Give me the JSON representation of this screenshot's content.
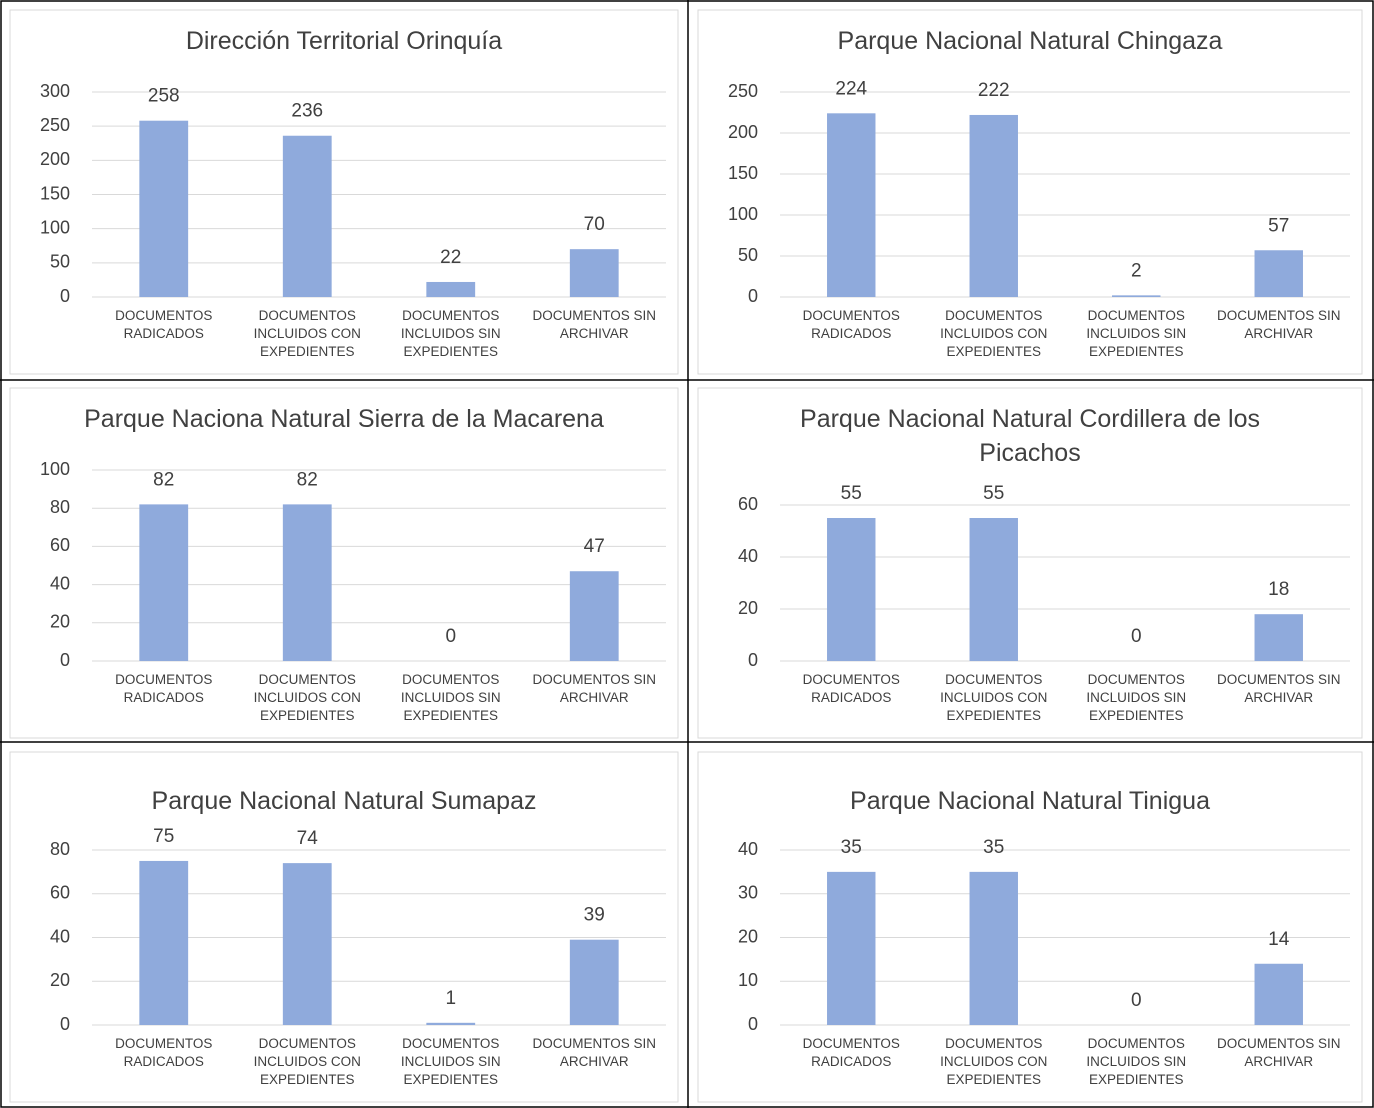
{
  "chart_data": [
    {
      "type": "bar",
      "title": "Dirección Territorial Orinquía",
      "categories": [
        "DOCUMENTOS RADICADOS",
        "DOCUMENTOS INCLUIDOS CON EXPEDIENTES",
        "DOCUMENTOS INCLUIDOS SIN EXPEDIENTES",
        "DOCUMENTOS SIN ARCHIVAR"
      ],
      "values": [
        258,
        236,
        22,
        70
      ],
      "color": "#8faadc",
      "ylim": [
        0,
        300
      ],
      "yticks": [
        0,
        50,
        100,
        150,
        200,
        250,
        300
      ],
      "grid": true
    },
    {
      "type": "bar",
      "title": "Parque Nacional Natural Chingaza",
      "categories": [
        "DOCUMENTOS RADICADOS",
        "DOCUMENTOS INCLUIDOS CON EXPEDIENTES",
        "DOCUMENTOS INCLUIDOS SIN EXPEDIENTES",
        "DOCUMENTOS SIN ARCHIVAR"
      ],
      "values": [
        224,
        222,
        2,
        57
      ],
      "color": "#8faadc",
      "ylim": [
        0,
        250
      ],
      "yticks": [
        0,
        50,
        100,
        150,
        200,
        250
      ],
      "grid": true
    },
    {
      "type": "bar",
      "title": "Parque Naciona Natural Sierra de la Macarena",
      "categories": [
        "DOCUMENTOS RADICADOS",
        "DOCUMENTOS INCLUIDOS CON EXPEDIENTES",
        "DOCUMENTOS INCLUIDOS SIN EXPEDIENTES",
        "DOCUMENTOS SIN ARCHIVAR"
      ],
      "values": [
        82,
        82,
        0,
        47
      ],
      "color": "#8faadc",
      "ylim": [
        0,
        100
      ],
      "yticks": [
        0,
        20,
        40,
        60,
        80,
        100
      ],
      "grid": true
    },
    {
      "type": "bar",
      "title": "Parque Nacional Natural Cordillera de los Picachos",
      "categories": [
        "DOCUMENTOS RADICADOS",
        "DOCUMENTOS INCLUIDOS CON EXPEDIENTES",
        "DOCUMENTOS INCLUIDOS SIN EXPEDIENTES",
        "DOCUMENTOS SIN ARCHIVAR"
      ],
      "values": [
        55,
        55,
        0,
        18
      ],
      "color": "#8faadc",
      "ylim": [
        0,
        60
      ],
      "yticks": [
        0,
        20,
        40,
        60
      ],
      "grid": true
    },
    {
      "type": "bar",
      "title": "Parque Nacional Natural Sumapaz",
      "categories": [
        "DOCUMENTOS RADICADOS",
        "DOCUMENTOS INCLUIDOS CON EXPEDIENTES",
        "DOCUMENTOS INCLUIDOS SIN EXPEDIENTES",
        "DOCUMENTOS SIN ARCHIVAR"
      ],
      "values": [
        75,
        74,
        1,
        39
      ],
      "color": "#8faadc",
      "ylim": [
        0,
        80
      ],
      "yticks": [
        0,
        20,
        40,
        60,
        80
      ],
      "grid": true
    },
    {
      "type": "bar",
      "title": "Parque Nacional Natural Tinigua",
      "categories": [
        "DOCUMENTOS RADICADOS",
        "DOCUMENTOS INCLUIDOS CON EXPEDIENTES",
        "DOCUMENTOS INCLUIDOS SIN EXPEDIENTES",
        "DOCUMENTOS SIN ARCHIVAR"
      ],
      "values": [
        35,
        35,
        0,
        14
      ],
      "color": "#8faadc",
      "ylim": [
        0,
        40
      ],
      "yticks": [
        0,
        10,
        20,
        30,
        40
      ],
      "grid": true
    }
  ]
}
